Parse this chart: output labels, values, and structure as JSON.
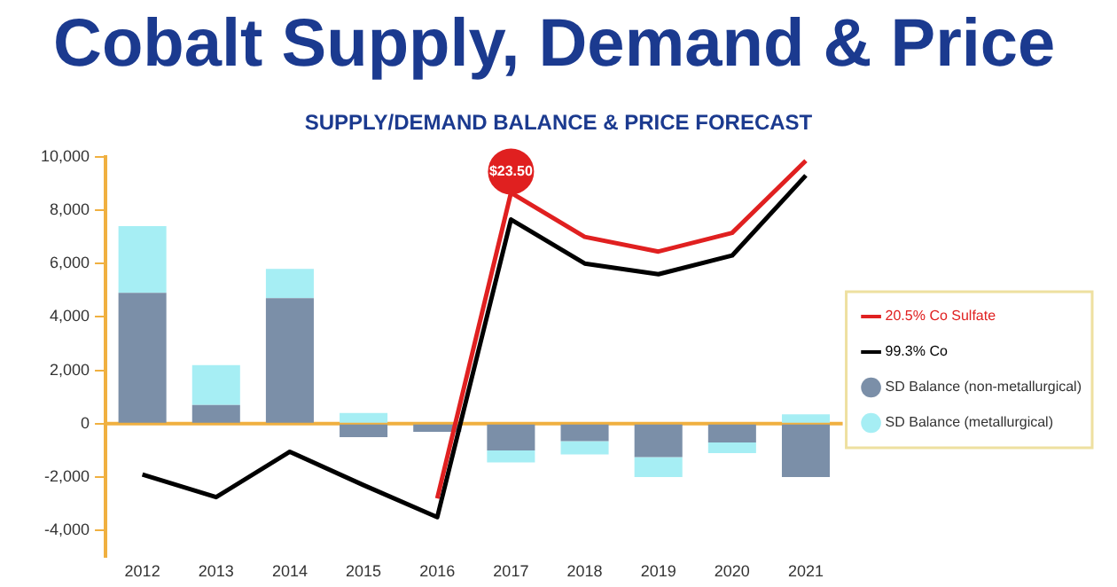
{
  "chart_data": {
    "type": "bar",
    "title": "Cobalt Supply, Demand & Price",
    "subtitle": "SUPPLY/DEMAND BALANCE & PRICE FORECAST",
    "categories": [
      "2012",
      "2013",
      "2014",
      "2015",
      "2016",
      "2017",
      "2018",
      "2019",
      "2020",
      "2021"
    ],
    "stacked": true,
    "series": [
      {
        "name": "20.5% Co Sulfate",
        "type": "line",
        "color": "#e02020",
        "values": [
          null,
          null,
          null,
          null,
          -2800,
          8650,
          7000,
          6450,
          7150,
          9850
        ]
      },
      {
        "name": "99.3% Co",
        "type": "line",
        "color": "#000000",
        "values": [
          -1900,
          -2750,
          -1050,
          -2300,
          -3500,
          7650,
          6000,
          5600,
          6300,
          9300
        ]
      },
      {
        "name": "SD Balance (non-metallurgical)",
        "color": "#7b8fa8",
        "values": [
          4900,
          700,
          4700,
          -500,
          -300,
          -1000,
          -650,
          -1250,
          -700,
          -2000
        ]
      },
      {
        "name": "SD Balance (metallurgical)",
        "color": "#a6eef4",
        "values": [
          2500,
          1500,
          1100,
          400,
          null,
          -450,
          -500,
          -750,
          -400,
          350
        ]
      }
    ],
    "ylim": [
      -5000,
      10000
    ],
    "yticks": [
      {
        "value": -4000,
        "label": "-4,000"
      },
      {
        "value": -2000,
        "label": "-2,000"
      },
      0,
      {
        "value": 2000,
        "label": "2,000"
      },
      {
        "value": 4000,
        "label": "4,000"
      },
      {
        "value": 6000,
        "label": "6,000"
      },
      {
        "value": 8000,
        "label": "8,000"
      },
      {
        "value": 10000,
        "label": "10,000"
      }
    ],
    "ref_lines": [
      {
        "axis": "y",
        "value": 0,
        "color": "#f0b040"
      }
    ],
    "annotations": [
      {
        "text": "$23.50",
        "x": "2017",
        "y": 8650
      }
    ],
    "grid": false,
    "legend": "right",
    "marker": "none"
  }
}
